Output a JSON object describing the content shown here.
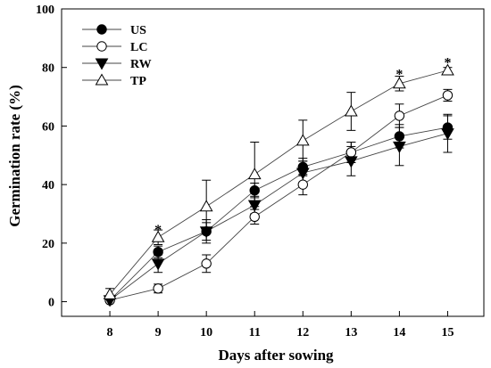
{
  "chart_data": {
    "type": "line",
    "xlabel": "Days after sowing",
    "ylabel": "Germination rate (%)",
    "x": [
      8,
      9,
      10,
      11,
      12,
      13,
      14,
      15
    ],
    "xlim": [
      7,
      15.75
    ],
    "ylim": [
      -5,
      100
    ],
    "xticks": [
      "8",
      "9",
      "10",
      "11",
      "12",
      "13",
      "14",
      "15"
    ],
    "yticks": [
      "0",
      "20",
      "40",
      "60",
      "80",
      "100"
    ],
    "legend_position": "top-left",
    "series": [
      {
        "name": "US",
        "marker": "filled-circle",
        "values": [
          0.5,
          17,
          24,
          38,
          46,
          51,
          56.5,
          59.5
        ],
        "errors": [
          0.5,
          2,
          4,
          2.5,
          3,
          3.5,
          4,
          4
        ]
      },
      {
        "name": "LC",
        "marker": "open-circle",
        "values": [
          0.5,
          4.5,
          13,
          29,
          40,
          51,
          63.5,
          70.5
        ],
        "errors": [
          0.5,
          1.5,
          3,
          2.5,
          3.5,
          3.5,
          4,
          2
        ]
      },
      {
        "name": "RW",
        "marker": "filled-triangle-down",
        "values": [
          0.5,
          13,
          24,
          33,
          44,
          48,
          53,
          57.5
        ],
        "errors": [
          0.5,
          3,
          3,
          3,
          4,
          5,
          6.5,
          6.5
        ]
      },
      {
        "name": "TP",
        "marker": "open-triangle-up",
        "values": [
          2.5,
          22,
          32.5,
          43.5,
          55,
          65,
          74.5,
          79
        ],
        "errors": [
          2,
          2.5,
          9,
          11,
          7,
          6.5,
          2.5,
          1
        ]
      }
    ],
    "annotations": [
      {
        "text": "*",
        "x": 9,
        "y": 25.5
      },
      {
        "text": "*",
        "x": 14,
        "y": 78.5
      },
      {
        "text": "*",
        "x": 15,
        "y": 82.5
      }
    ]
  }
}
